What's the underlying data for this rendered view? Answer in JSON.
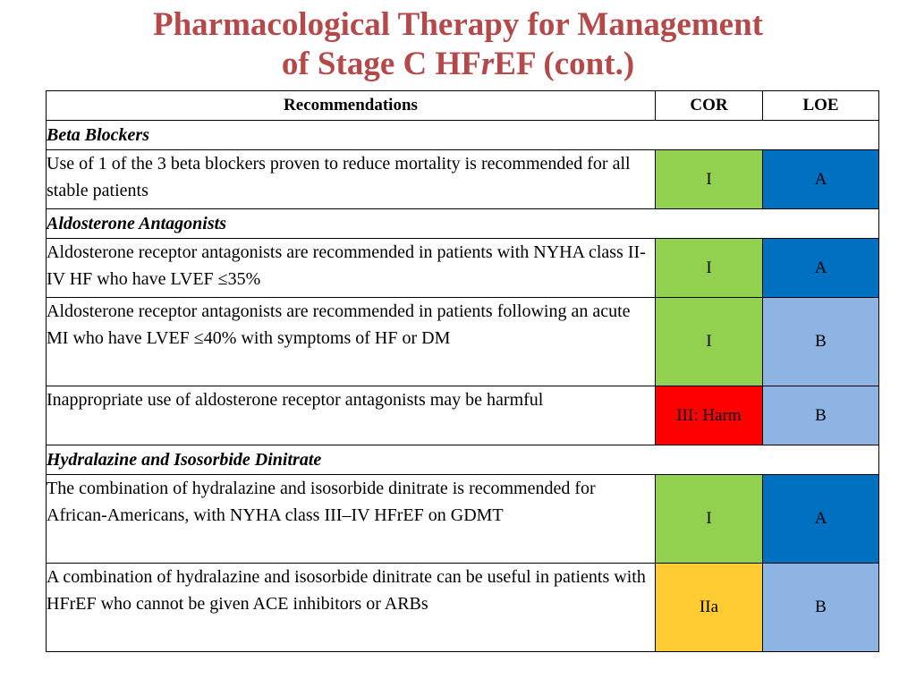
{
  "title": {
    "line1": "Pharmacological Therapy for Management",
    "line2_pre": "of  Stage C HF",
    "line2_italic": "r",
    "line2_post": "EF (cont.)"
  },
  "table": {
    "headers": [
      "Recommendations",
      "COR",
      "LOE"
    ],
    "sections": [
      {
        "name": "Beta Blockers",
        "rows": [
          {
            "text": "Use of 1 of the 3 beta blockers proven to reduce mortality is recommended for all stable patients",
            "cor": "I",
            "loe": "A"
          }
        ]
      },
      {
        "name": "Aldosterone Antagonists",
        "rows": [
          {
            "text": "Aldosterone receptor antagonists are recommended in patients with NYHA class II-IV HF who have LVEF ≤35%",
            "cor": "I",
            "loe": "A"
          },
          {
            "text": "Aldosterone receptor antagonists are recommended in patients following an acute MI who have LVEF ≤40% with symptoms of HF or DM",
            "cor": "I",
            "loe": "B"
          },
          {
            "text": "Inappropriate use of aldosterone receptor antagonists may be harmful",
            "cor": "III: Harm",
            "loe": "B"
          }
        ]
      },
      {
        "name": "Hydralazine and Isosorbide Dinitrate",
        "rows": [
          {
            "text": "The combination of hydralazine and isosorbide dinitrate is recommended for African-Americans, with NYHA class III–IV HFrEF on GDMT",
            "cor": "I",
            "loe": "A"
          },
          {
            "text": "A combination of hydralazine and isosorbide dinitrate can be useful in patients with HFrEF who cannot be given ACE inhibitors or ARBs",
            "cor": "IIa",
            "loe": "B"
          }
        ]
      }
    ]
  },
  "colors": {
    "title": "#b5494a",
    "cor_I": "#92d050",
    "cor_IIa": "#ffcc33",
    "cor_III_Harm": "#ff0000",
    "loe_A": "#0070c0",
    "loe_B": "#8eb4e3"
  }
}
